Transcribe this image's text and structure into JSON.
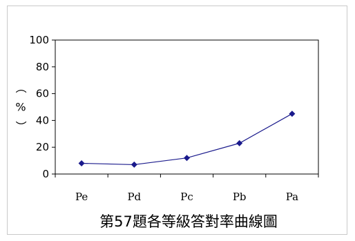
{
  "chart_data": {
    "type": "line",
    "title": "第57題各等級答對率曲線圖",
    "ylabel": "（%）",
    "xlabel": "",
    "categories": [
      "Pe",
      "Pd",
      "Pc",
      "Pb",
      "Pa"
    ],
    "series": [
      {
        "values": [
          8,
          7,
          12,
          23,
          45
        ],
        "color": "#1a1a8c"
      }
    ],
    "ylim": [
      0,
      100
    ],
    "yticks": [
      0,
      20,
      40,
      60,
      80,
      100
    ],
    "grid": false,
    "legend": "none"
  }
}
